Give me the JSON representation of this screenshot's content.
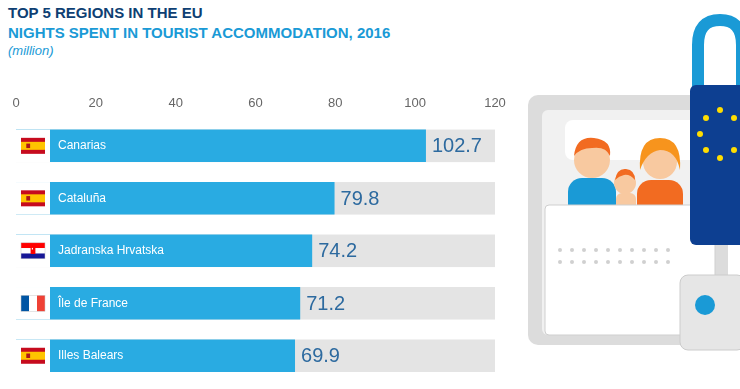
{
  "chart_data": {
    "type": "bar",
    "title": "TOP 5 REGIONS IN THE EU",
    "subtitle": "NIGHTS SPENT IN TOURIST ACCOMMODATION, 2016",
    "x_label": "(million)",
    "orientation": "horizontal",
    "categories": [
      "Canarias",
      "Cataluña",
      "Jadranska Hrvatska",
      "Île de France",
      "Illes Balears"
    ],
    "values": [
      102.7,
      79.8,
      74.2,
      71.2,
      69.9
    ],
    "color": "#29abe2",
    "xlim": [
      0,
      120
    ],
    "xticks": [
      0,
      20,
      40,
      60,
      80,
      100,
      120
    ],
    "grid": false,
    "data_labels": true,
    "tick_labels": "x"
  }
}
